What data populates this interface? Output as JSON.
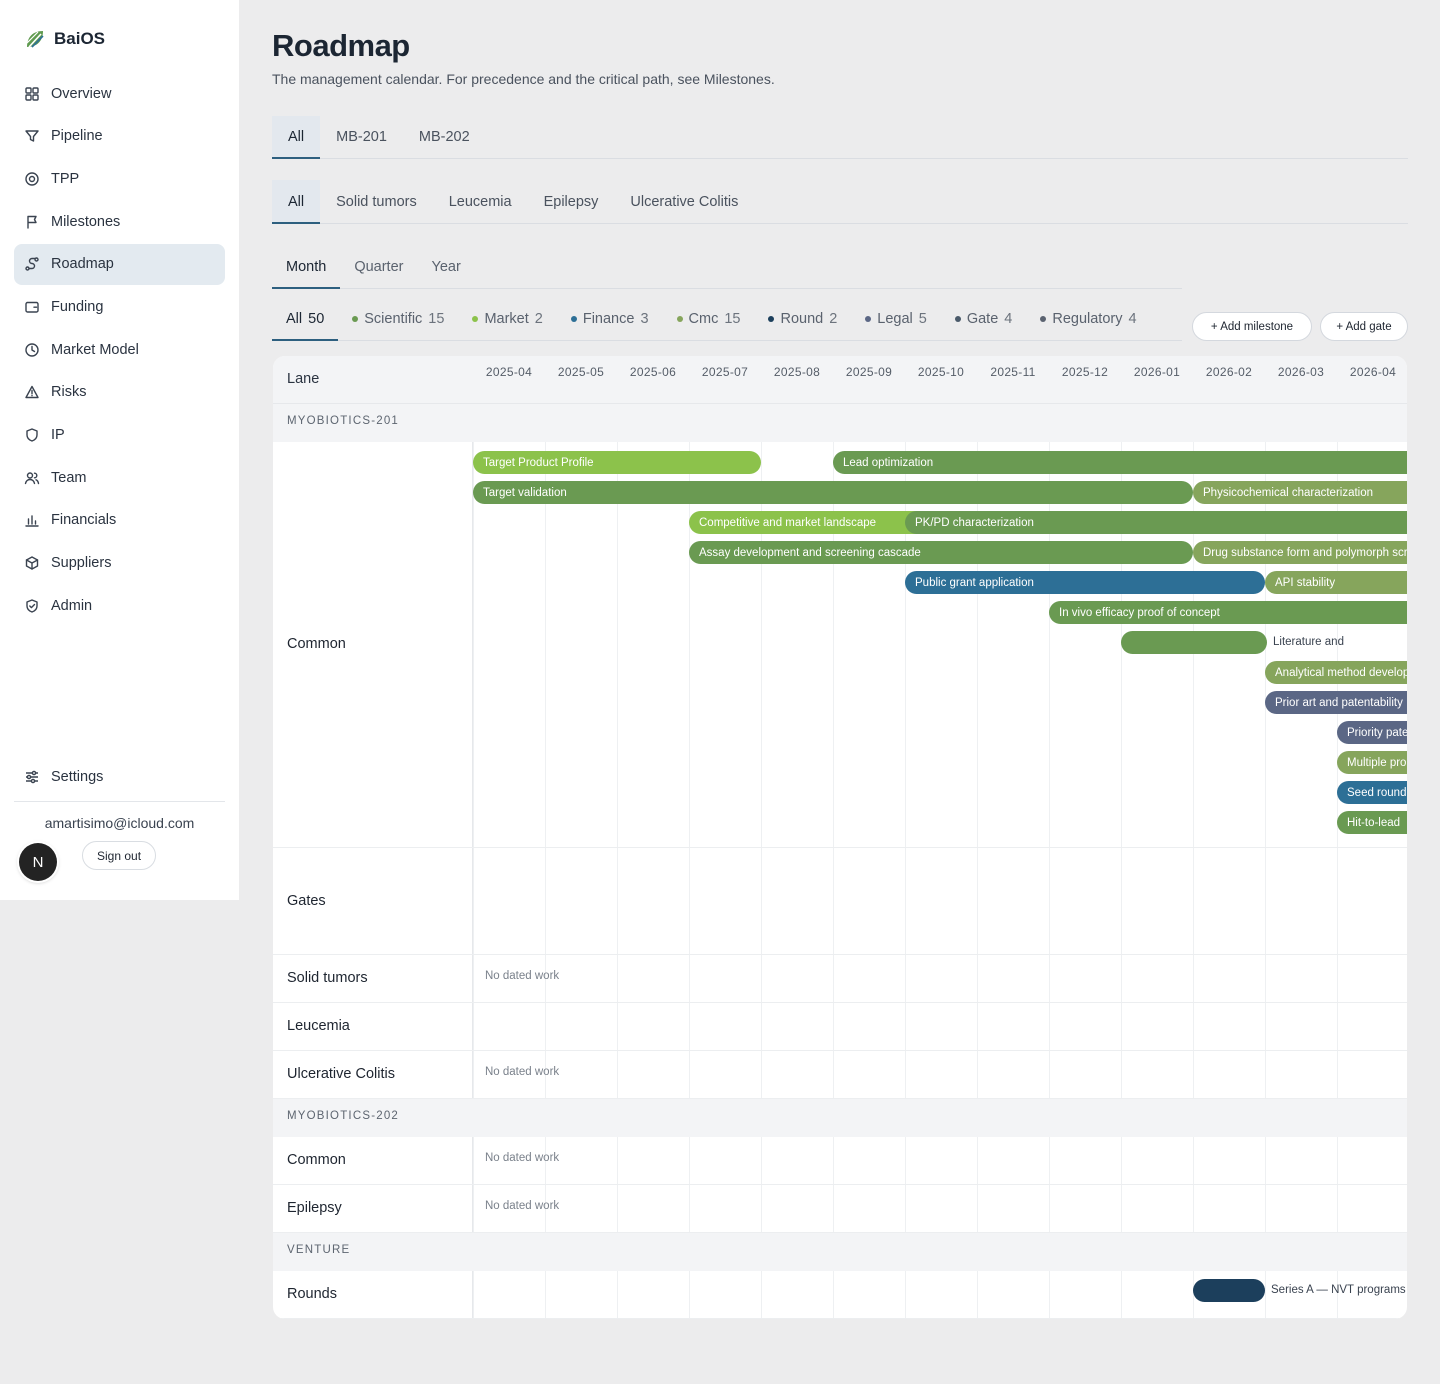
{
  "app": {
    "name": "BaiOS"
  },
  "sidebar": {
    "items": [
      {
        "label": "Overview",
        "icon": "grid-icon"
      },
      {
        "label": "Pipeline",
        "icon": "funnel-icon"
      },
      {
        "label": "TPP",
        "icon": "target-icon"
      },
      {
        "label": "Milestones",
        "icon": "flag-icon"
      },
      {
        "label": "Roadmap",
        "icon": "route-icon",
        "active": true
      },
      {
        "label": "Funding",
        "icon": "wallet-icon"
      },
      {
        "label": "Market Model",
        "icon": "clock-icon"
      },
      {
        "label": "Risks",
        "icon": "warning-icon"
      },
      {
        "label": "IP",
        "icon": "shield-icon"
      },
      {
        "label": "Team",
        "icon": "users-icon"
      },
      {
        "label": "Financials",
        "icon": "bar-chart-icon"
      },
      {
        "label": "Suppliers",
        "icon": "box-icon"
      },
      {
        "label": "Admin",
        "icon": "shield-check-icon"
      }
    ],
    "settings_label": "Settings",
    "user_email": "amartisimo@icloud.com",
    "avatar_initial": "N",
    "signout_label": "Sign out"
  },
  "page": {
    "title": "Roadmap",
    "subtitle": "The management calendar. For precedence and the critical path, see Milestones."
  },
  "program_tabs": [
    "All",
    "MB-201",
    "MB-202"
  ],
  "indication_tabs": [
    "All",
    "Solid tumors",
    "Leucemia",
    "Epilepsy",
    "Ulcerative Colitis"
  ],
  "scale_tabs": [
    "Month",
    "Quarter",
    "Year"
  ],
  "filters": [
    {
      "label": "All",
      "count": "50",
      "color": ""
    },
    {
      "label": "Scientific",
      "count": "15",
      "color": "#6a9a52"
    },
    {
      "label": "Market",
      "count": "2",
      "color": "#8cc24b"
    },
    {
      "label": "Finance",
      "count": "3",
      "color": "#2d6f96"
    },
    {
      "label": "Cmc",
      "count": "15",
      "color": "#86a55c"
    },
    {
      "label": "Round",
      "count": "2",
      "color": "#1c3f5c"
    },
    {
      "label": "Legal",
      "count": "5",
      "color": "#5b6785"
    },
    {
      "label": "Gate",
      "count": "4",
      "color": "#4a5a6a"
    },
    {
      "label": "Regulatory",
      "count": "4",
      "color": "#5a6270"
    }
  ],
  "actions": {
    "add_milestone": "+ Add milestone",
    "add_gate": "+ Add gate"
  },
  "gantt": {
    "lane_header": "Lane",
    "months": [
      "2025-04",
      "2025-05",
      "2025-06",
      "2025-07",
      "2025-08",
      "2025-09",
      "2025-10",
      "2025-11",
      "2025-12",
      "2026-01",
      "2026-02",
      "2026-03",
      "2026-04"
    ],
    "no_work_label": "No dated work",
    "groups": [
      {
        "label": "MYOBIOTICS-201",
        "lanes": [
          "Common",
          "Gates",
          "Solid tumors",
          "Leucemia",
          "Ulcerative Colitis"
        ]
      },
      {
        "label": "MYOBIOTICS-202",
        "lanes": [
          "Common",
          "Epilepsy"
        ]
      },
      {
        "label": "VENTURE",
        "lanes": [
          "Rounds"
        ]
      }
    ],
    "bars": [
      {
        "label": "Target Product Profile",
        "type": "Market",
        "start": "2025-04",
        "end": "2025-07",
        "color": "#8cc24b"
      },
      {
        "label": "Lead optimization",
        "type": "Scientific",
        "start": "2025-09",
        "end": "2026-04",
        "color": "#6a9a52"
      },
      {
        "label": "Target validation",
        "type": "Scientific",
        "start": "2025-04",
        "end": "2026-01",
        "color": "#6a9a52"
      },
      {
        "label": "Physicochemical characterization",
        "type": "Cmc",
        "start": "2026-02",
        "end": "2026-04",
        "color": "#86a55c"
      },
      {
        "label": "Competitive and market landscape",
        "type": "Market",
        "start": "2025-07",
        "end": "2025-10",
        "color": "#8cc24b"
      },
      {
        "label": "PK/PD characterization",
        "type": "Scientific",
        "start": "2025-10",
        "end": "2026-04",
        "color": "#6a9a52"
      },
      {
        "label": "Assay development and screening cascade",
        "type": "Scientific",
        "start": "2025-07",
        "end": "2026-01",
        "color": "#6a9a52"
      },
      {
        "label": "Drug substance form and polymorph screen",
        "type": "Cmc",
        "start": "2026-02",
        "end": "2026-04",
        "color": "#86a55c"
      },
      {
        "label": "Public grant application",
        "type": "Finance",
        "start": "2025-10",
        "end": "2026-02",
        "color": "#2d6f96"
      },
      {
        "label": "API stability",
        "type": "Cmc",
        "start": "2026-03",
        "end": "2026-04",
        "color": "#86a55c"
      },
      {
        "label": "In vivo efficacy proof of concept",
        "type": "Scientific",
        "start": "2025-12",
        "end": "2026-04",
        "color": "#6a9a52"
      },
      {
        "label": "Literature and",
        "type": "Scientific",
        "start": "2026-01",
        "end": "2026-03",
        "color": "#6a9a52",
        "outside": true
      },
      {
        "label": "Analytical method develop",
        "type": "Cmc",
        "start": "2026-03",
        "end": "2026-04",
        "color": "#86a55c"
      },
      {
        "label": "Prior art and patentability",
        "type": "Legal",
        "start": "2026-03",
        "end": "2026-04",
        "color": "#5b6785"
      },
      {
        "label": "Priority pate",
        "type": "Legal",
        "start": "2026-04",
        "end": "2026-04",
        "color": "#5b6785"
      },
      {
        "label": "Multiple pro",
        "type": "Cmc",
        "start": "2026-04",
        "end": "2026-04",
        "color": "#86a55c"
      },
      {
        "label": "Seed round",
        "type": "Finance",
        "start": "2026-04",
        "end": "2026-04",
        "color": "#2d6f96"
      },
      {
        "label": "Hit-to-lead",
        "type": "Scientific",
        "start": "2026-04",
        "end": "2026-04",
        "color": "#6a9a52"
      }
    ],
    "round_bar": {
      "label": "Series A — NVT programs",
      "start": "2026-02",
      "end": "2026-02",
      "color": "#1c3f5c"
    }
  }
}
